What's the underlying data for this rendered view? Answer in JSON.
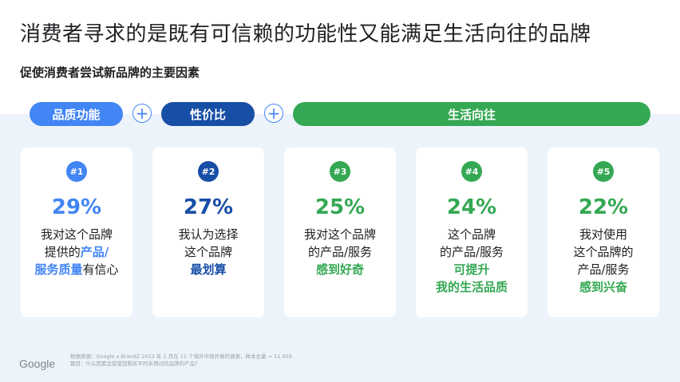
{
  "title": "消费者寻求的是既有可信赖的功能性又能满足生活向往的品牌",
  "subtitle": "促使消费者尝试新品牌的主要因素",
  "categories": {
    "quality": "品质功能",
    "value": "性价比",
    "aspiration": "生活向往",
    "plus": "+"
  },
  "cards": [
    {
      "rank": "#1",
      "percent": "29%",
      "lines": [
        "我对这个品牌",
        "提供的"
      ],
      "hl1": "产品/",
      "hl2": "服务质量",
      "tail": "有信心",
      "color": "#4285f4"
    },
    {
      "rank": "#2",
      "percent": "27%",
      "lines": [
        "我认为选择",
        "这个品牌"
      ],
      "hl": "最划算",
      "color": "#174ea6"
    },
    {
      "rank": "#3",
      "percent": "25%",
      "lines": [
        "我对这个品牌",
        "的产品/服务"
      ],
      "hl": "感到好奇",
      "color": "#34a853"
    },
    {
      "rank": "#4",
      "percent": "24%",
      "lines": [
        "这个品牌",
        "的产品/服务"
      ],
      "hl": "可提升",
      "hl2": "我的生活品质",
      "color": "#34a853"
    },
    {
      "rank": "#5",
      "percent": "22%",
      "lines": [
        "我对使用",
        "这个品牌的",
        "产品/服务"
      ],
      "hl": "感到兴奋",
      "color": "#34a853"
    }
  ],
  "footer": {
    "logo": "Google",
    "source_line1": "数据来源：Google x BrandZ 2023 年 1 月在 11 个海外市场开展的调查，样本总量 = 11,959",
    "source_line2": "题目：什么因素会促使您购买平时未用过的品牌的产品？"
  }
}
